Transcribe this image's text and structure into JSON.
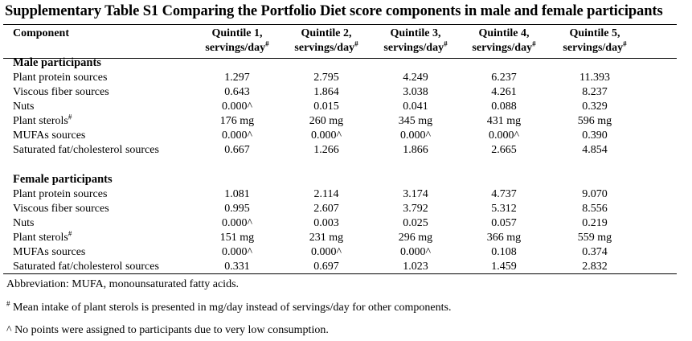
{
  "title": "Supplementary Table S1 Comparing the Portfolio Diet score components in male and female participants",
  "header": {
    "component": "Component",
    "quintiles": [
      {
        "line1": "Quintile 1,",
        "line2": "servings/day",
        "sup": "#"
      },
      {
        "line1": "Quintile 2,",
        "line2": "servings/day",
        "sup": "#"
      },
      {
        "line1": "Quintile 3,",
        "line2": "servings/day",
        "sup": "#"
      },
      {
        "line1": "Quintile 4,",
        "line2": "servings/day",
        "sup": "#"
      },
      {
        "line1": "Quintile 5,",
        "line2": "servings/day",
        "sup": "#"
      }
    ]
  },
  "sections": [
    {
      "name": "Male participants",
      "rows": [
        {
          "label": "Plant protein sources",
          "sup": "",
          "values": [
            "1.297",
            "2.795",
            "4.249",
            "6.237",
            "11.393"
          ]
        },
        {
          "label": "Viscous fiber sources",
          "sup": "",
          "values": [
            "0.643",
            "1.864",
            "3.038",
            "4.261",
            "8.237"
          ]
        },
        {
          "label": "Nuts",
          "sup": "",
          "values": [
            "0.000^",
            "0.015",
            "0.041",
            "0.088",
            "0.329"
          ]
        },
        {
          "label": "Plant sterols",
          "sup": "#",
          "values": [
            "176 mg",
            "260 mg",
            "345 mg",
            "431 mg",
            "596 mg"
          ]
        },
        {
          "label": "MUFAs sources",
          "sup": "",
          "values": [
            "0.000^",
            "0.000^",
            "0.000^",
            "0.000^",
            "0.390"
          ]
        },
        {
          "label": "Saturated fat/cholesterol sources",
          "sup": "",
          "values": [
            "0.667",
            "1.266",
            "1.866",
            "2.665",
            "4.854"
          ]
        }
      ]
    },
    {
      "name": "Female participants",
      "rows": [
        {
          "label": "Plant protein sources",
          "sup": "",
          "values": [
            "1.081",
            "2.114",
            "3.174",
            "4.737",
            "9.070"
          ]
        },
        {
          "label": "Viscous fiber sources",
          "sup": "",
          "values": [
            "0.995",
            "2.607",
            "3.792",
            "5.312",
            "8.556"
          ]
        },
        {
          "label": "Nuts",
          "sup": "",
          "values": [
            "0.000^",
            "0.003",
            "0.025",
            "0.057",
            "0.219"
          ]
        },
        {
          "label": "Plant sterols",
          "sup": "#",
          "values": [
            "151 mg",
            "231 mg",
            "296 mg",
            "366 mg",
            "559 mg"
          ]
        },
        {
          "label": "MUFAs sources",
          "sup": "",
          "values": [
            "0.000^",
            "0.000^",
            "0.000^",
            "0.108",
            "0.374"
          ]
        },
        {
          "label": "Saturated fat/cholesterol sources",
          "sup": "",
          "values": [
            "0.331",
            "0.697",
            "1.023",
            "1.459",
            "2.832"
          ]
        }
      ]
    }
  ],
  "footnotes": {
    "abbreviation": "Abbreviation: MUFA, monounsaturated fatty acids.",
    "sterols_mark": "#",
    "sterols": " Mean intake of plant sterols is presented in mg/day instead of servings/day for other components.",
    "no_points": "^ No points were assigned to participants due to very low consumption."
  }
}
